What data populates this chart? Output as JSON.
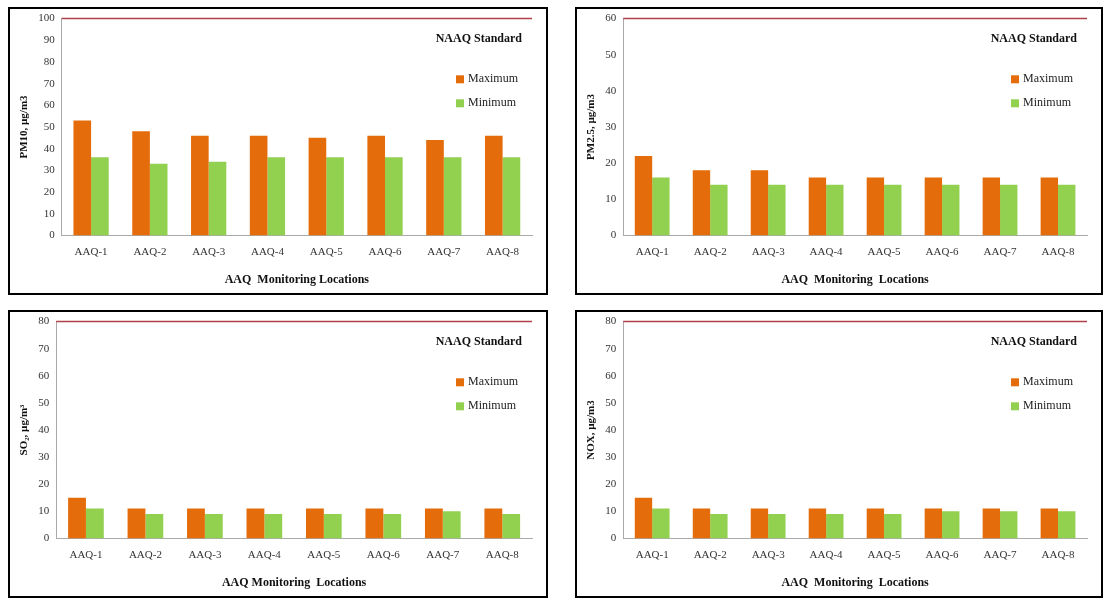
{
  "chart_data": [
    {
      "type": "bar",
      "xlabel": "AAQ  Monitoring Locations",
      "ylabel": "PM10, µg/m3",
      "categories": [
        "AAQ-1",
        "AAQ-2",
        "AAQ-3",
        "AAQ-4",
        "AAQ-5",
        "AAQ-6",
        "AAQ-7",
        "AAQ-8"
      ],
      "series": [
        {
          "name": "Maximum",
          "color": "#e46c0a",
          "values": [
            53,
            48,
            46,
            46,
            45,
            46,
            44,
            46
          ]
        },
        {
          "name": "Minimum",
          "color": "#92d050",
          "values": [
            36,
            33,
            34,
            36,
            36,
            36,
            36,
            36
          ]
        }
      ],
      "ylim": [
        0,
        100
      ],
      "yticks": [
        0,
        10,
        20,
        30,
        40,
        50,
        60,
        70,
        80,
        90,
        100
      ],
      "grid": false,
      "legend": "top right",
      "ref_lines": [
        {
          "axis": "y",
          "value": 100,
          "label": "NAAQ Standard",
          "color": "#b0404a"
        }
      ]
    },
    {
      "type": "bar",
      "xlabel": "AAQ  Monitoring  Locations",
      "ylabel": "PM2.5, µg/m3",
      "categories": [
        "AAQ-1",
        "AAQ-2",
        "AAQ-3",
        "AAQ-4",
        "AAQ-5",
        "AAQ-6",
        "AAQ-7",
        "AAQ-8"
      ],
      "series": [
        {
          "name": "Maximum",
          "color": "#e46c0a",
          "values": [
            22,
            18,
            18,
            16,
            16,
            16,
            16,
            16
          ]
        },
        {
          "name": "Minimum",
          "color": "#92d050",
          "values": [
            16,
            14,
            14,
            14,
            14,
            14,
            14,
            14
          ]
        }
      ],
      "ylim": [
        0,
        60
      ],
      "yticks": [
        0,
        10,
        20,
        30,
        40,
        50,
        60
      ],
      "grid": false,
      "legend": "top right",
      "ref_lines": [
        {
          "axis": "y",
          "value": 60,
          "label": "NAAQ Standard",
          "color": "#b0404a"
        }
      ]
    },
    {
      "type": "bar",
      "xlabel": "AAQ Monitoring  Locations",
      "ylabel": "SO₂, µg/m³",
      "categories": [
        "AAQ-1",
        "AAQ-2",
        "AAQ-3",
        "AAQ-4",
        "AAQ-5",
        "AAQ-6",
        "AAQ-7",
        "AAQ-8"
      ],
      "series": [
        {
          "name": "Maximum",
          "color": "#e46c0a",
          "values": [
            15,
            11,
            11,
            11,
            11,
            11,
            11,
            11
          ]
        },
        {
          "name": "Minimum",
          "color": "#92d050",
          "values": [
            11,
            9,
            9,
            9,
            9,
            9,
            10,
            9
          ]
        }
      ],
      "ylim": [
        0,
        80
      ],
      "yticks": [
        0,
        10,
        20,
        30,
        40,
        50,
        60,
        70,
        80
      ],
      "grid": false,
      "legend": "top right",
      "ref_lines": [
        {
          "axis": "y",
          "value": 80,
          "label": "NAAQ Standard",
          "color": "#b0404a"
        }
      ]
    },
    {
      "type": "bar",
      "xlabel": "AAQ  Monitoring  Locations",
      "ylabel": "NOX, µg/m3",
      "categories": [
        "AAQ-1",
        "AAQ-2",
        "AAQ-3",
        "AAQ-4",
        "AAQ-5",
        "AAQ-6",
        "AAQ-7",
        "AAQ-8"
      ],
      "series": [
        {
          "name": "Maximum",
          "color": "#e46c0a",
          "values": [
            15,
            11,
            11,
            11,
            11,
            11,
            11,
            11
          ]
        },
        {
          "name": "Minimum",
          "color": "#92d050",
          "values": [
            11,
            9,
            9,
            9,
            9,
            10,
            10,
            10
          ]
        }
      ],
      "ylim": [
        0,
        80
      ],
      "yticks": [
        0,
        10,
        20,
        30,
        40,
        50,
        60,
        70,
        80
      ],
      "grid": false,
      "legend": "top right",
      "ref_lines": [
        {
          "axis": "y",
          "value": 80,
          "label": "NAAQ Standard",
          "color": "#b0404a"
        }
      ]
    }
  ]
}
